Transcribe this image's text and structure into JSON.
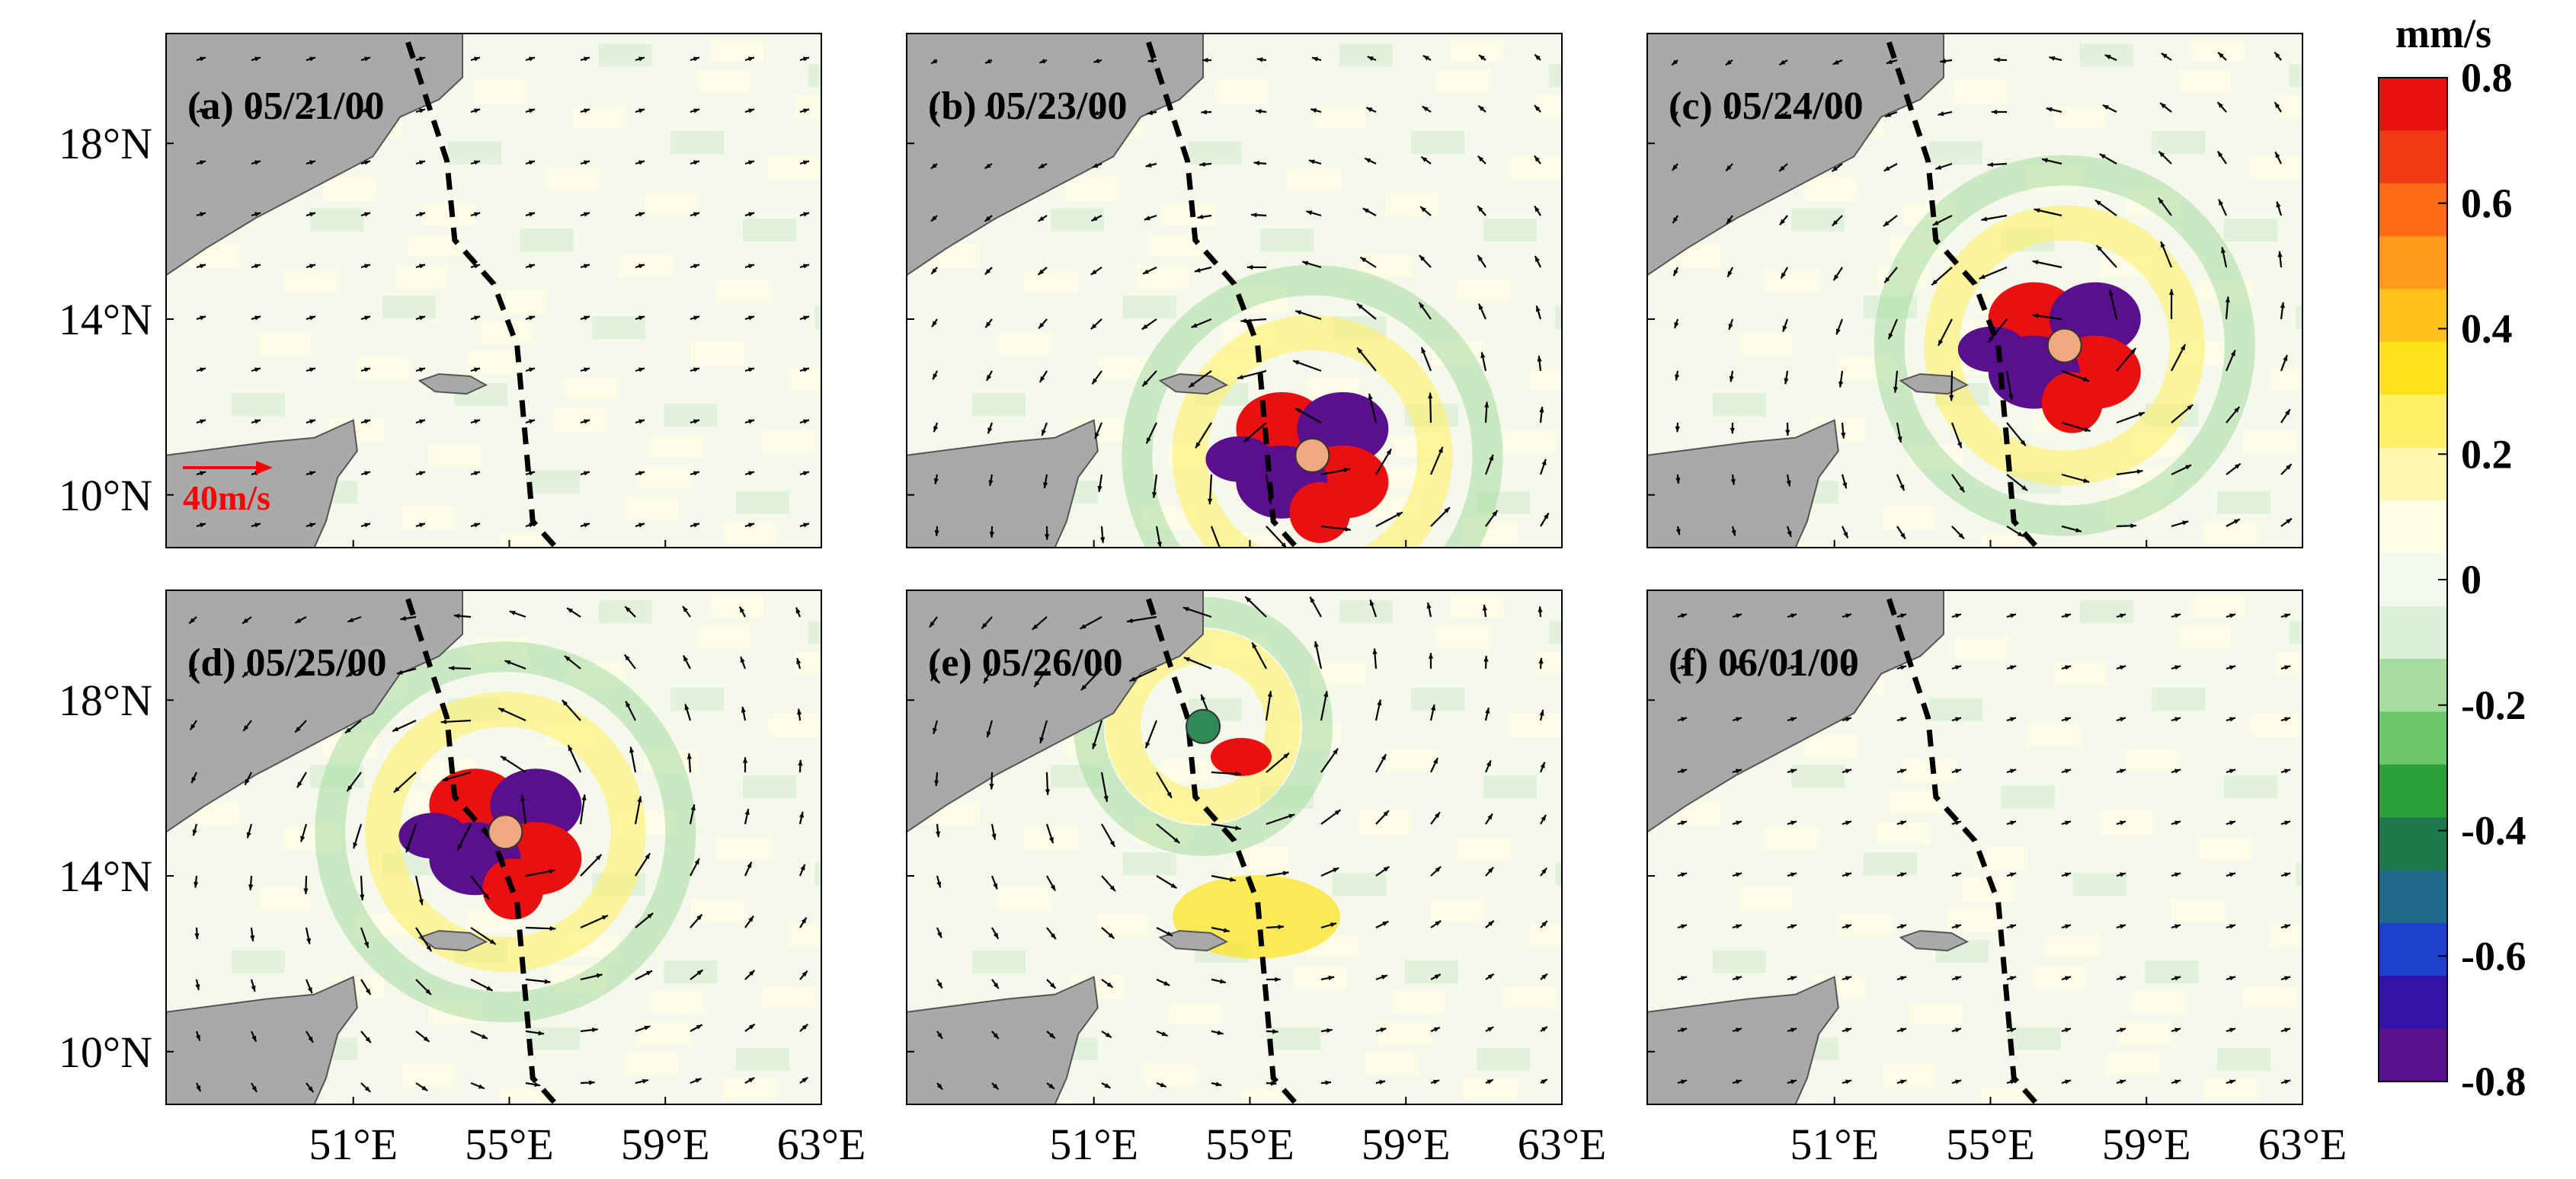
{
  "chart_data": {
    "type": "heatmap",
    "description_of_fields": "Six map panels with color-shaded field and black wind vectors; dashed black line is the cyclone track; circle marks cyclone center.",
    "y_tick_labels": [
      "18°N",
      "14°N",
      "10°N"
    ],
    "y_tick_values": [
      18,
      14,
      10
    ],
    "x_tick_labels": [
      "51°E",
      "55°E",
      "59°E",
      "63°E"
    ],
    "x_tick_values": [
      51,
      55,
      59,
      63
    ],
    "lon_range": [
      46.2,
      63.0
    ],
    "lat_range": [
      8.8,
      20.5
    ],
    "colorbar": {
      "unit": "mm/s",
      "ticks": [
        0.8,
        0.6,
        0.4,
        0.2,
        0,
        -0.2,
        -0.4,
        -0.6,
        -0.8
      ],
      "tick_labels": [
        "0.8",
        "0.6",
        "0.4",
        "0.2",
        "0",
        "-0.2",
        "-0.4",
        "-0.6",
        "-0.8"
      ],
      "range": [
        -0.8,
        0.8
      ],
      "colors": [
        "#5a0f8c",
        "#3312a8",
        "#1f3fcf",
        "#1f6a8a",
        "#1e7a4a",
        "#2aa13a",
        "#6cc66a",
        "#a7dca0",
        "#dcefd8",
        "#f2f8ee",
        "#fffde6",
        "#fff7b0",
        "#fff06a",
        "#ffe21a",
        "#ffc21a",
        "#ff9a1a",
        "#ff6a14",
        "#f23a12",
        "#e81010"
      ]
    },
    "reference_vector": {
      "label": "40m/s",
      "color": "#ff0000"
    },
    "track": [
      [
        52.4,
        20.3
      ],
      [
        53.4,
        17.6
      ],
      [
        53.6,
        15.8
      ],
      [
        54.6,
        14.8
      ],
      [
        55.2,
        13.4
      ],
      [
        55.4,
        11.4
      ],
      [
        55.6,
        9.4
      ],
      [
        56.2,
        8.8
      ]
    ],
    "panels": [
      {
        "label": "(a) 05/21/00",
        "center": null,
        "marker": "none"
      },
      {
        "label": "(b) 05/23/00",
        "center": [
          56.6,
          10.9
        ],
        "marker": "circle-orange"
      },
      {
        "label": "(c) 05/24/00",
        "center": [
          56.9,
          13.4
        ],
        "marker": "circle-orange"
      },
      {
        "label": "(d) 05/25/00",
        "center": [
          54.9,
          15.0
        ],
        "marker": "circle-orange"
      },
      {
        "label": "(e) 05/26/00",
        "center": [
          53.8,
          17.4
        ],
        "marker": "circle-green"
      },
      {
        "label": "(f) 06/01/00",
        "center": null,
        "marker": "none"
      }
    ],
    "marker_colors": {
      "circle-orange": "#f0a880",
      "circle-green": "#2e8b57"
    },
    "land_color": "#a9a9a9",
    "track_style": "dashed black"
  }
}
